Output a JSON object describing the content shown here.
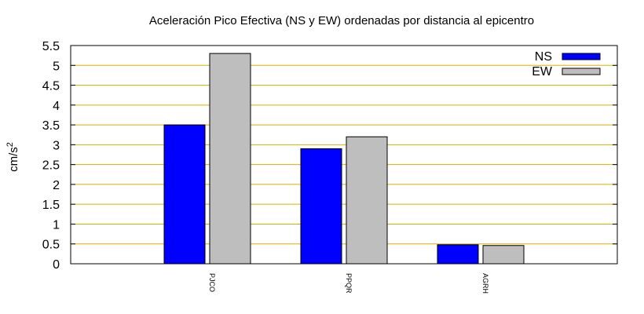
{
  "chart_data": {
    "type": "bar",
    "title": "Aceleración Pico Efectiva (NS y EW) ordenadas por distancia al epicentro",
    "ylabel_base": "cm/s",
    "ylabel_exp": "2",
    "xlabel": "",
    "ylim": [
      0,
      5.5
    ],
    "yticks": [
      "0",
      "0.5",
      "1",
      "1.5",
      "2",
      "2.5",
      "3",
      "3.5",
      "4",
      "4.5",
      "5",
      "5.5"
    ],
    "categories": [
      "PJCO",
      "PPQR",
      "AGRH"
    ],
    "series": [
      {
        "name": "NS",
        "values": [
          3.5,
          2.9,
          0.48
        ],
        "color": "#0000ff"
      },
      {
        "name": "EW",
        "values": [
          5.3,
          3.2,
          0.46
        ],
        "color": "#bebebe"
      }
    ],
    "grid": true,
    "grid_color": "#dab000",
    "legend_position": "top-right"
  }
}
